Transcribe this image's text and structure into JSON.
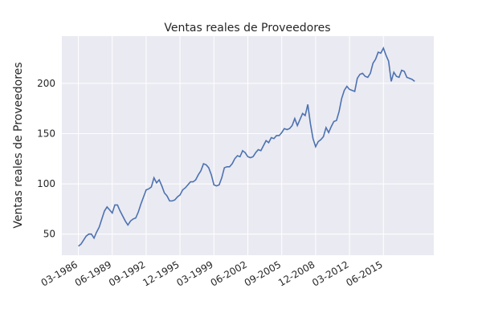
{
  "chart_data": {
    "type": "line",
    "title": "Ventas reales de Proveedores",
    "y_label": "Ventas reales de Proveedores",
    "x": [
      "03-1986",
      "06-1986",
      "09-1986",
      "12-1986",
      "03-1987",
      "06-1987",
      "09-1987",
      "12-1987",
      "03-1988",
      "06-1988",
      "09-1988",
      "12-1988",
      "03-1989",
      "06-1989",
      "09-1989",
      "12-1989",
      "03-1990",
      "06-1990",
      "09-1990",
      "12-1990",
      "03-1991",
      "06-1991",
      "09-1991",
      "12-1991",
      "03-1992",
      "06-1992",
      "09-1992",
      "12-1992",
      "03-1993",
      "06-1993",
      "09-1993",
      "12-1993",
      "03-1994",
      "06-1994",
      "09-1994",
      "12-1994",
      "03-1995",
      "06-1995",
      "09-1995",
      "12-1995",
      "03-1996",
      "06-1996",
      "09-1996",
      "12-1996",
      "03-1997",
      "06-1997",
      "09-1997",
      "12-1997",
      "03-1998",
      "06-1998",
      "09-1998",
      "12-1998",
      "03-1999",
      "06-1999",
      "09-1999",
      "12-1999",
      "03-2000",
      "06-2000",
      "09-2000",
      "12-2000",
      "03-2001",
      "06-2001",
      "09-2001",
      "12-2001",
      "03-2002",
      "06-2002",
      "09-2002",
      "12-2002",
      "03-2003",
      "06-2003",
      "09-2003",
      "12-2003",
      "03-2004",
      "06-2004",
      "09-2004",
      "12-2004",
      "03-2005",
      "06-2005",
      "09-2005",
      "12-2005",
      "03-2006",
      "06-2006",
      "09-2006",
      "12-2006",
      "03-2007",
      "06-2007",
      "09-2007",
      "12-2007",
      "03-2008",
      "06-2008",
      "09-2008",
      "12-2008",
      "03-2009",
      "06-2009",
      "09-2009",
      "12-2009",
      "03-2010",
      "06-2010",
      "09-2010",
      "12-2010",
      "03-2011",
      "06-2011",
      "09-2011",
      "12-2011",
      "03-2012",
      "06-2012",
      "09-2012",
      "12-2012",
      "03-2013",
      "06-2013",
      "09-2013",
      "12-2013",
      "03-2014",
      "06-2014",
      "09-2014",
      "12-2014",
      "03-2015",
      "06-2015",
      "09-2015",
      "12-2015",
      "03-2016",
      "06-2016",
      "09-2016",
      "12-2016",
      "03-2017",
      "06-2017",
      "09-2017",
      "12-2017",
      "03-2018",
      "06-2018"
    ],
    "series": [
      {
        "name": "Ventas reales de Proveedores",
        "color": "#4c72b0",
        "values": [
          38,
          40,
          44,
          48,
          50,
          50,
          46,
          52,
          57,
          65,
          73,
          77,
          74,
          71,
          79,
          79,
          73,
          68,
          63,
          59,
          63,
          65,
          66,
          72,
          80,
          87,
          94,
          95,
          97,
          106,
          101,
          104,
          98,
          91,
          88,
          83,
          83,
          84,
          87,
          89,
          94,
          96,
          99,
          102,
          102,
          104,
          109,
          113,
          120,
          119,
          116,
          109,
          99,
          98,
          99,
          106,
          116,
          117,
          117,
          120,
          125,
          128,
          127,
          133,
          131,
          127,
          126,
          127,
          131,
          134,
          133,
          138,
          143,
          141,
          146,
          145,
          148,
          148,
          151,
          155,
          154,
          155,
          158,
          165,
          158,
          164,
          170,
          168,
          179,
          160,
          145,
          137,
          142,
          144,
          147,
          156,
          151,
          157,
          162,
          163,
          172,
          185,
          193,
          197,
          194,
          193,
          192,
          205,
          209,
          210,
          207,
          206,
          210,
          220,
          224,
          231,
          230,
          235,
          228,
          222,
          202,
          211,
          207,
          206,
          213,
          212,
          206,
          205,
          204,
          202
        ]
      }
    ],
    "xlim": [
      "08-1984",
      "04-2020"
    ],
    "xticks": [
      "03-1986",
      "06-1989",
      "09-1992",
      "12-1995",
      "03-1999",
      "06-2002",
      "09-2005",
      "12-2008",
      "03-2012",
      "06-2015"
    ],
    "ylim": [
      29,
      247
    ],
    "yticks": [
      50,
      100,
      150,
      200
    ],
    "grid": true
  }
}
